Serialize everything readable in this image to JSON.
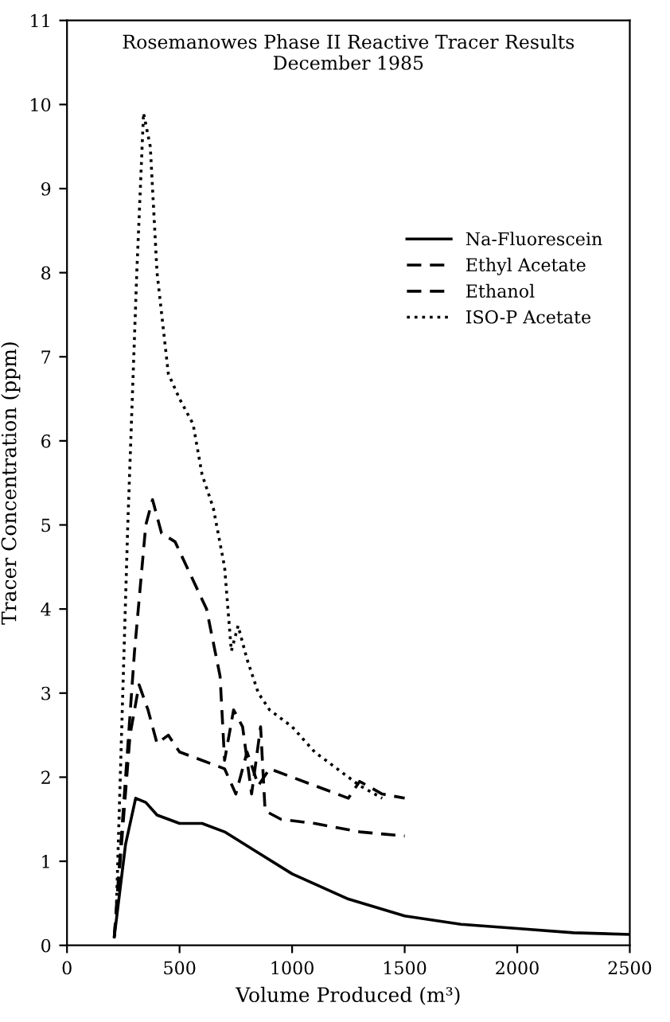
{
  "chart_data": {
    "type": "line",
    "title": "Rosemanowes Phase II Reactive Tracer Results\nDecember 1985",
    "xlabel": "Volume Produced (m³)",
    "ylabel": "Tracer Concentration (ppm)",
    "xlim": [
      0,
      2500
    ],
    "xticks": [
      0,
      500,
      1000,
      1500,
      2000,
      2500
    ],
    "ylim": [
      0,
      11
    ],
    "yticks": [
      0,
      1,
      2,
      3,
      4,
      5,
      6,
      7,
      8,
      9,
      10,
      11
    ],
    "grid": false,
    "legend": "right",
    "marker": "none",
    "series": [
      {
        "name": "Na-Fluorescein",
        "color": "#000000",
        "line_style": "solid",
        "x": [
          210,
          260,
          305,
          350,
          400,
          500,
          600,
          700,
          850,
          1000,
          1250,
          1500,
          1750,
          2000,
          2250,
          2500
        ],
        "values": [
          0.1,
          1.2,
          1.75,
          1.7,
          1.55,
          1.45,
          1.45,
          1.35,
          1.1,
          0.85,
          0.55,
          0.35,
          0.25,
          0.2,
          0.15,
          0.13
        ]
      },
      {
        "name": "Ethyl Acetate",
        "color": "#000000",
        "line_style": "dashed",
        "x": [
          210,
          280,
          320,
          360,
          400,
          450,
          500,
          600,
          700,
          750,
          800,
          850,
          900,
          1000,
          1100,
          1200,
          1250,
          1300,
          1400,
          1500
        ],
        "values": [
          0.1,
          2.5,
          3.1,
          2.8,
          2.4,
          2.5,
          2.3,
          2.2,
          2.1,
          1.8,
          2.3,
          1.9,
          2.1,
          2.0,
          1.9,
          1.8,
          1.75,
          1.95,
          1.8,
          1.75
        ]
      },
      {
        "name": "Ethanol",
        "color": "#000000",
        "line_style": "dashed",
        "x": [
          210,
          300,
          350,
          380,
          420,
          480,
          550,
          620,
          680,
          700,
          740,
          780,
          820,
          860,
          880,
          950,
          1100,
          1300,
          1500
        ],
        "values": [
          0.1,
          3.5,
          5.0,
          5.3,
          4.9,
          4.8,
          4.4,
          4.0,
          3.2,
          2.2,
          2.8,
          2.6,
          1.8,
          2.6,
          1.6,
          1.5,
          1.45,
          1.35,
          1.3
        ]
      },
      {
        "name": "ISO-P Acetate",
        "color": "#000000",
        "line_style": "dotted",
        "x": [
          220,
          270,
          310,
          340,
          370,
          400,
          450,
          500,
          560,
          600,
          650,
          700,
          730,
          760,
          800,
          850,
          900,
          1000,
          1100,
          1200,
          1300,
          1400
        ],
        "values": [
          0.5,
          5.0,
          8.0,
          9.9,
          9.5,
          8.0,
          6.8,
          6.5,
          6.2,
          5.6,
          5.2,
          4.5,
          3.5,
          3.8,
          3.4,
          3.0,
          2.8,
          2.6,
          2.3,
          2.1,
          1.9,
          1.75
        ]
      }
    ]
  }
}
